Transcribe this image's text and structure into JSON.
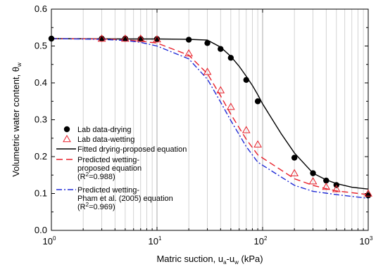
{
  "chart_data": {
    "type": "scatter",
    "x_scale": "log",
    "xlim": [
      1,
      1000
    ],
    "ylim": [
      0.0,
      0.6
    ],
    "grid": "log-x vertical gridlines",
    "x_ticks": [
      "10^0",
      "10^1",
      "10^2",
      "10^3"
    ],
    "x_tick_labels": [
      {
        "base": "10",
        "exp": "0"
      },
      {
        "base": "10",
        "exp": "1"
      },
      {
        "base": "10",
        "exp": "2"
      },
      {
        "base": "10",
        "exp": "3"
      }
    ],
    "y_ticks": [
      "0.0",
      "0.1",
      "0.2",
      "0.3",
      "0.4",
      "0.5",
      "0.6"
    ],
    "xlabel": {
      "pre": "Matric suction, u",
      "sub1": "a",
      "mid": "-u",
      "sub2": "w",
      "post": " (kPa)"
    },
    "ylabel": {
      "pre": "Volumetric water content, θ",
      "sub": "w"
    },
    "legend_position": "bottom-left",
    "series": [
      {
        "name": "Lab data-drying",
        "kind": "points",
        "marker": "filled-circle",
        "color": "#000000",
        "x": [
          1,
          3,
          5,
          7,
          10,
          20,
          30,
          40,
          50,
          70,
          90,
          200,
          300,
          400,
          500,
          1000
        ],
        "y": [
          0.52,
          0.52,
          0.52,
          0.519,
          0.519,
          0.517,
          0.508,
          0.492,
          0.468,
          0.408,
          0.35,
          0.197,
          0.155,
          0.135,
          0.123,
          0.095
        ]
      },
      {
        "name": "Lab data-wetting",
        "kind": "points",
        "marker": "open-triangle",
        "color": "#e8202a",
        "x": [
          3,
          5,
          7,
          10,
          20,
          30,
          40,
          50,
          70,
          90,
          200,
          300,
          400,
          500,
          1000
        ],
        "y": [
          0.52,
          0.52,
          0.52,
          0.518,
          0.48,
          0.43,
          0.38,
          0.335,
          0.272,
          0.233,
          0.155,
          0.133,
          0.118,
          0.112,
          0.1
        ]
      },
      {
        "name": "Fitted drying-proposed equation",
        "kind": "line",
        "dash": "solid",
        "color": "#000000",
        "x": [
          1,
          5,
          10,
          20,
          30,
          40,
          50,
          60,
          70,
          80,
          90,
          100,
          150,
          200,
          300,
          400,
          500,
          700,
          1000
        ],
        "y": [
          0.52,
          0.519,
          0.519,
          0.518,
          0.516,
          0.497,
          0.472,
          0.445,
          0.418,
          0.393,
          0.368,
          0.343,
          0.262,
          0.21,
          0.155,
          0.137,
          0.127,
          0.117,
          0.112
        ]
      },
      {
        "name": "Predicted wetting-proposed equation (R2=0.988)",
        "kind": "line",
        "dash": "dashed",
        "color": "#e8202a",
        "x": [
          1,
          3,
          5,
          7,
          10,
          20,
          30,
          40,
          50,
          70,
          90,
          200,
          300,
          400,
          500,
          1000
        ],
        "y": [
          0.52,
          0.519,
          0.517,
          0.513,
          0.508,
          0.475,
          0.425,
          0.365,
          0.315,
          0.247,
          0.205,
          0.14,
          0.122,
          0.113,
          0.107,
          0.097
        ]
      },
      {
        "name": "Predicted wetting-Pham et al. (2005) equation (R2=0.969)",
        "kind": "line",
        "dash": "dash-dot",
        "color": "#1f2ad6",
        "x": [
          1,
          3,
          5,
          7,
          10,
          20,
          30,
          40,
          50,
          70,
          90,
          200,
          300,
          400,
          500,
          1000
        ],
        "y": [
          0.52,
          0.518,
          0.515,
          0.51,
          0.5,
          0.465,
          0.41,
          0.348,
          0.298,
          0.227,
          0.185,
          0.122,
          0.106,
          0.101,
          0.097,
          0.087
        ]
      }
    ],
    "legend": [
      {
        "lines": [
          "Lab data-drying"
        ]
      },
      {
        "lines": [
          "Lab data-wetting"
        ]
      },
      {
        "lines": [
          "Fitted drying-proposed equation"
        ]
      },
      {
        "lines": [
          "Predicted wetting-",
          "proposed equation",
          "(R2=0.988)"
        ]
      },
      {
        "lines": [
          "Predicted wetting-",
          "Pham et al. (2005) equation",
          "(R2=0.969)"
        ]
      }
    ]
  }
}
